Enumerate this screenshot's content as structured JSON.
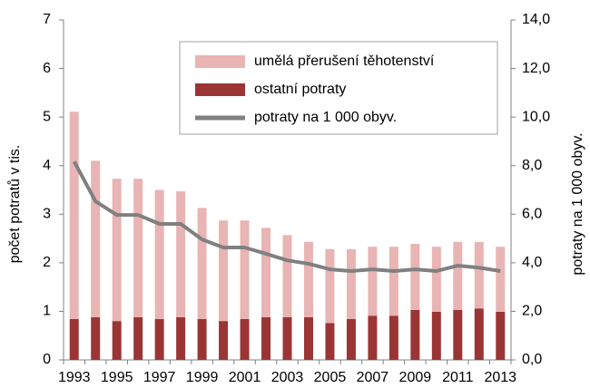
{
  "chart_data": {
    "type": "bar",
    "stacked": true,
    "categories": [
      "1993",
      null,
      "1995",
      null,
      "1997",
      null,
      "1999",
      null,
      "2001",
      null,
      "2003",
      null,
      "2005",
      null,
      "2007",
      null,
      "2009",
      null,
      "2011",
      null,
      "2013"
    ],
    "series": [
      {
        "name": "umělá přerušení těhotenství",
        "color": "#e8b4b4",
        "values": [
          4.27,
          3.22,
          2.93,
          2.85,
          2.66,
          2.59,
          2.29,
          2.07,
          2.03,
          1.84,
          1.69,
          1.55,
          1.52,
          1.44,
          1.42,
          1.42,
          1.36,
          1.34,
          1.4,
          1.37,
          1.34
        ]
      },
      {
        "name": "ostatní potraty",
        "color": "#9b3535",
        "values": [
          0.84,
          0.88,
          0.8,
          0.88,
          0.84,
          0.88,
          0.84,
          0.8,
          0.84,
          0.88,
          0.88,
          0.88,
          0.76,
          0.84,
          0.91,
          0.91,
          1.03,
          0.99,
          1.03,
          1.06,
          0.99
        ]
      },
      {
        "name": "potraty na 1 000 obyv.",
        "color": "#808080",
        "type": "line",
        "axis": "y2",
        "values": [
          8.17,
          6.53,
          5.97,
          5.97,
          5.6,
          5.6,
          4.96,
          4.63,
          4.63,
          4.37,
          4.1,
          3.96,
          3.73,
          3.66,
          3.73,
          3.66,
          3.73,
          3.66,
          3.88,
          3.8,
          3.66
        ]
      }
    ],
    "ylabel": "počet potratů v tis.",
    "y2label": "potraty na 1 000 obyv.",
    "ylim": [
      0,
      7
    ],
    "yticks": [
      0,
      1,
      2,
      3,
      4,
      5,
      6,
      7
    ],
    "y2lim": [
      0,
      14
    ],
    "y2ticks": [
      {
        "value": 0,
        "label": "0,0"
      },
      {
        "value": 2,
        "label": "2,0"
      },
      {
        "value": 4,
        "label": "4,0"
      },
      {
        "value": 6,
        "label": "6,0"
      },
      {
        "value": 8,
        "label": "8,0"
      },
      {
        "value": 10,
        "label": "10,0"
      },
      {
        "value": 12,
        "label": "12,0"
      },
      {
        "value": 14,
        "label": "14,0"
      }
    ],
    "grid": false
  }
}
